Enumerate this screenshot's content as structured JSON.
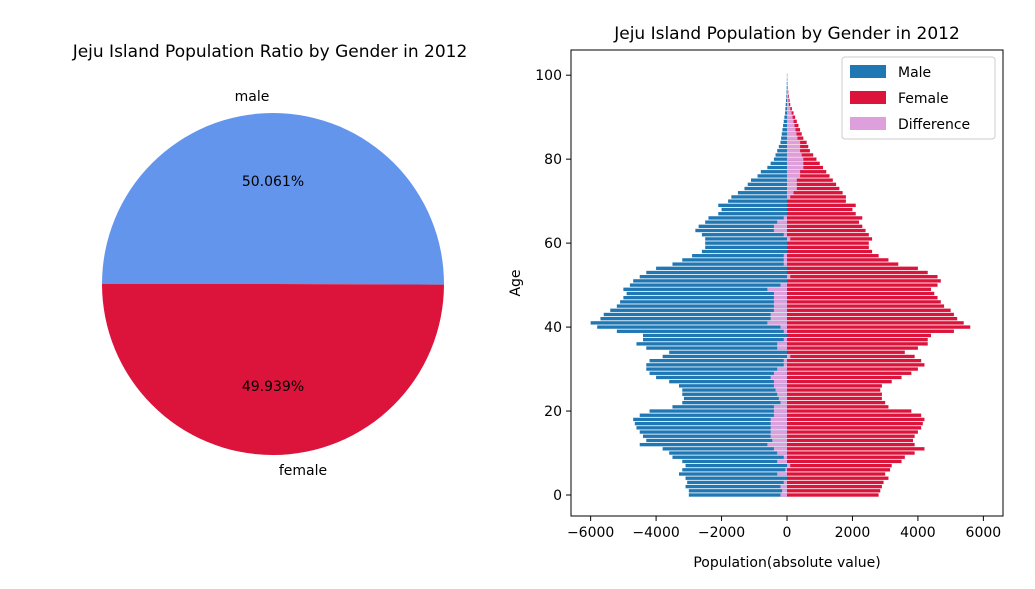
{
  "chart_data": [
    {
      "type": "pie",
      "title": "Jeju Island Population Ratio by Gender in 2012",
      "labels": [
        "male",
        "female"
      ],
      "values": [
        50.061,
        49.939
      ],
      "pct_labels": [
        "50.061%",
        "49.939%"
      ],
      "colors": [
        "#6495ED",
        "#DC143C"
      ]
    },
    {
      "type": "bar",
      "orientation": "horizontal",
      "title": "Jeju Island Population by Gender in 2012",
      "xlabel": "Population(absolute value)",
      "ylabel": "Age",
      "xlim": [
        -6600,
        6600
      ],
      "ylim": [
        -5,
        106
      ],
      "xticks": [
        -6000,
        -4000,
        -2000,
        0,
        2000,
        4000,
        6000
      ],
      "xtick_labels": [
        "−6000",
        "−4000",
        "−2000",
        "0",
        "2000",
        "4000",
        "6000"
      ],
      "yticks": [
        0,
        20,
        40,
        60,
        80,
        100
      ],
      "ytick_labels": [
        "0",
        "20",
        "40",
        "60",
        "80",
        "100"
      ],
      "legend": {
        "location": "top-right",
        "entries": [
          "Male",
          "Female",
          "Difference"
        ]
      },
      "colors": {
        "Male": "#1F77B4",
        "Female": "#DC143C",
        "Difference": "#DDA0DD"
      },
      "ages": [
        0,
        1,
        2,
        3,
        4,
        5,
        6,
        7,
        8,
        9,
        10,
        11,
        12,
        13,
        14,
        15,
        16,
        17,
        18,
        19,
        20,
        21,
        22,
        23,
        24,
        25,
        26,
        27,
        28,
        29,
        30,
        31,
        32,
        33,
        34,
        35,
        36,
        37,
        38,
        39,
        40,
        41,
        42,
        43,
        44,
        45,
        46,
        47,
        48,
        49,
        50,
        51,
        52,
        53,
        54,
        55,
        56,
        57,
        58,
        59,
        60,
        61,
        62,
        63,
        64,
        65,
        66,
        67,
        68,
        69,
        70,
        71,
        72,
        73,
        74,
        75,
        76,
        77,
        78,
        79,
        80,
        81,
        82,
        83,
        84,
        85,
        86,
        87,
        88,
        89,
        90,
        91,
        92,
        93,
        94,
        95,
        96,
        97,
        98,
        99,
        100
      ],
      "series": [
        {
          "name": "Male",
          "values": [
            -3000,
            -3000,
            -3100,
            -3050,
            -3100,
            -3300,
            -3200,
            -3100,
            -3200,
            -3500,
            -3600,
            -3800,
            -4500,
            -4300,
            -4400,
            -4500,
            -4600,
            -4650,
            -4700,
            -4500,
            -4200,
            -3500,
            -3200,
            -3150,
            -3200,
            -3200,
            -3300,
            -3600,
            -4000,
            -4200,
            -4300,
            -4300,
            -4200,
            -3800,
            -3600,
            -4300,
            -4600,
            -4400,
            -4400,
            -5200,
            -5800,
            -6000,
            -5700,
            -5600,
            -5400,
            -5200,
            -5100,
            -5000,
            -4900,
            -5000,
            -4800,
            -4700,
            -4500,
            -4300,
            -4000,
            -3500,
            -3200,
            -2900,
            -2600,
            -2500,
            -2500,
            -2500,
            -2600,
            -2800,
            -2700,
            -2500,
            -2400,
            -2100,
            -2000,
            -2100,
            -1800,
            -1700,
            -1500,
            -1300,
            -1200,
            -1100,
            -900,
            -800,
            -600,
            -500,
            -400,
            -350,
            -300,
            -250,
            -200,
            -180,
            -160,
            -140,
            -120,
            -100,
            -80,
            -60,
            -50,
            -40,
            -30,
            -20,
            -15,
            -10,
            -8,
            -5,
            -3
          ]
        },
        {
          "name": "Female",
          "values": [
            2800,
            2850,
            2900,
            2950,
            3100,
            3000,
            3150,
            3200,
            3500,
            3600,
            3900,
            4200,
            3900,
            3850,
            3900,
            4000,
            4100,
            4150,
            4200,
            4100,
            3800,
            3100,
            3000,
            2900,
            2900,
            2850,
            2900,
            3200,
            3500,
            3800,
            4000,
            4200,
            4100,
            3900,
            3600,
            4000,
            4300,
            4300,
            4400,
            5100,
            5600,
            5400,
            5200,
            5100,
            5000,
            4800,
            4700,
            4600,
            4500,
            4400,
            4600,
            4700,
            4600,
            4300,
            4000,
            3400,
            3100,
            2800,
            2600,
            2500,
            2500,
            2600,
            2500,
            2400,
            2300,
            2200,
            2300,
            2100,
            2000,
            2100,
            1800,
            1800,
            1700,
            1600,
            1500,
            1400,
            1300,
            1200,
            1100,
            1000,
            900,
            800,
            700,
            650,
            600,
            500,
            450,
            400,
            350,
            300,
            250,
            200,
            150,
            100,
            80,
            60,
            40,
            30,
            20,
            10,
            8
          ]
        },
        {
          "name": "Difference",
          "values": [
            -200,
            -150,
            -200,
            -100,
            0,
            -300,
            -50,
            100,
            -300,
            -100,
            -300,
            -400,
            -600,
            -450,
            -500,
            -500,
            -500,
            -500,
            -500,
            -400,
            -400,
            -400,
            -200,
            -250,
            -300,
            -350,
            -400,
            -400,
            -500,
            -400,
            -300,
            -100,
            -100,
            100,
            0,
            -300,
            -300,
            -100,
            0,
            -100,
            -200,
            -600,
            -500,
            -500,
            -400,
            -400,
            -400,
            -400,
            -400,
            -600,
            -200,
            0,
            100,
            0,
            0,
            -100,
            -100,
            -100,
            0,
            0,
            0,
            100,
            -100,
            -400,
            -400,
            -300,
            -100,
            0,
            0,
            0,
            0,
            100,
            200,
            300,
            300,
            300,
            400,
            400,
            500,
            500,
            500,
            450,
            400,
            400,
            400,
            320,
            290,
            260,
            230,
            200,
            170,
            140,
            100,
            60,
            50,
            40,
            25,
            20,
            12,
            5,
            5
          ]
        }
      ]
    }
  ]
}
